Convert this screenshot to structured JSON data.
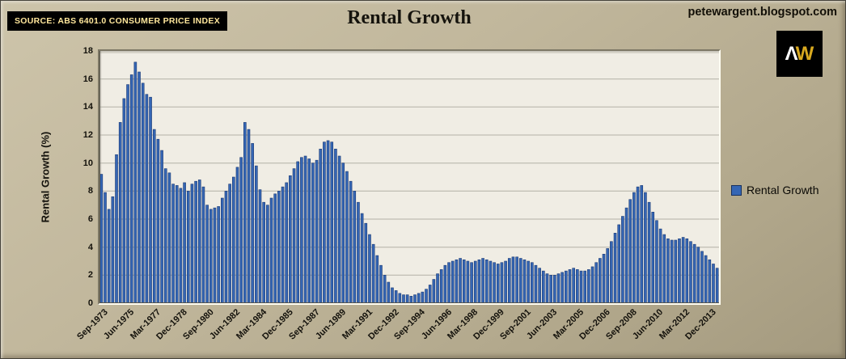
{
  "header": {
    "source": "SOURCE: ABS 6401.0 CONSUMER PRICE INDEX",
    "blog_url": "petewargent.blogspot.com",
    "logo_text_1": "Λ",
    "logo_text_2": "W"
  },
  "legend": {
    "label": "Rental Growth",
    "swatch_color": "#3566b4"
  },
  "chart_data": {
    "type": "bar",
    "title": "Rental Growth",
    "xlabel": "",
    "ylabel": "Rental Growth (%)",
    "ylim": [
      0,
      18
    ],
    "ytick_step": 2,
    "y_tick_values": [
      0,
      2,
      4,
      6,
      8,
      10,
      12,
      14,
      16,
      18
    ],
    "grid": "horizontal",
    "legend_position": "right",
    "bar_color": "#3566b4",
    "bar_border_color": "#1c3a73",
    "start_quarter": "Sep-1973",
    "end_quarter": "Jun-2014",
    "x_tick_interval": 7,
    "x_tick_labels": [
      "Sep-1973",
      "Jun-1975",
      "Mar-1977",
      "Dec-1978",
      "Sep-1980",
      "Jun-1982",
      "Mar-1984",
      "Dec-1985",
      "Sep-1987",
      "Jun-1989",
      "Mar-1991",
      "Dec-1992",
      "Sep-1994",
      "Jun-1996",
      "Mar-1998",
      "Dec-1999",
      "Sep-2001",
      "Jun-2003",
      "Mar-2005",
      "Dec-2006",
      "Sep-2008",
      "Jun-2010",
      "Mar-2012",
      "Dec-2013"
    ],
    "values": [
      9.2,
      7.9,
      6.7,
      7.6,
      10.6,
      12.9,
      14.6,
      15.6,
      16.3,
      17.2,
      16.5,
      15.7,
      14.9,
      14.7,
      12.4,
      11.7,
      10.9,
      9.6,
      9.3,
      8.5,
      8.4,
      8.2,
      8.6,
      8.0,
      8.5,
      8.7,
      8.8,
      8.3,
      7.0,
      6.7,
      6.8,
      6.9,
      7.5,
      8.0,
      8.5,
      9.0,
      9.7,
      10.4,
      12.9,
      12.4,
      11.4,
      9.8,
      8.1,
      7.2,
      7.0,
      7.5,
      7.8,
      8.0,
      8.3,
      8.6,
      9.1,
      9.6,
      10.1,
      10.4,
      10.5,
      10.3,
      10.0,
      10.2,
      11.0,
      11.5,
      11.6,
      11.5,
      11.0,
      10.5,
      10.0,
      9.4,
      8.7,
      8.0,
      7.2,
      6.4,
      5.7,
      4.9,
      4.2,
      3.4,
      2.7,
      2.0,
      1.5,
      1.1,
      0.9,
      0.7,
      0.6,
      0.6,
      0.5,
      0.6,
      0.7,
      0.8,
      1.0,
      1.3,
      1.7,
      2.1,
      2.4,
      2.7,
      2.9,
      3.0,
      3.1,
      3.2,
      3.1,
      3.0,
      2.9,
      3.0,
      3.1,
      3.2,
      3.1,
      3.0,
      2.9,
      2.8,
      2.9,
      3.0,
      3.2,
      3.3,
      3.3,
      3.2,
      3.1,
      3.0,
      2.9,
      2.7,
      2.5,
      2.3,
      2.1,
      2.0,
      2.0,
      2.1,
      2.2,
      2.3,
      2.4,
      2.5,
      2.4,
      2.3,
      2.3,
      2.4,
      2.6,
      2.9,
      3.2,
      3.5,
      3.9,
      4.4,
      5.0,
      5.6,
      6.2,
      6.8,
      7.4,
      7.9,
      8.3,
      8.4,
      7.9,
      7.2,
      6.5,
      5.9,
      5.3,
      4.9,
      4.6,
      4.5,
      4.5,
      4.6,
      4.7,
      4.6,
      4.4,
      4.2,
      4.0,
      3.7,
      3.4,
      3.1,
      2.8,
      2.5
    ]
  }
}
